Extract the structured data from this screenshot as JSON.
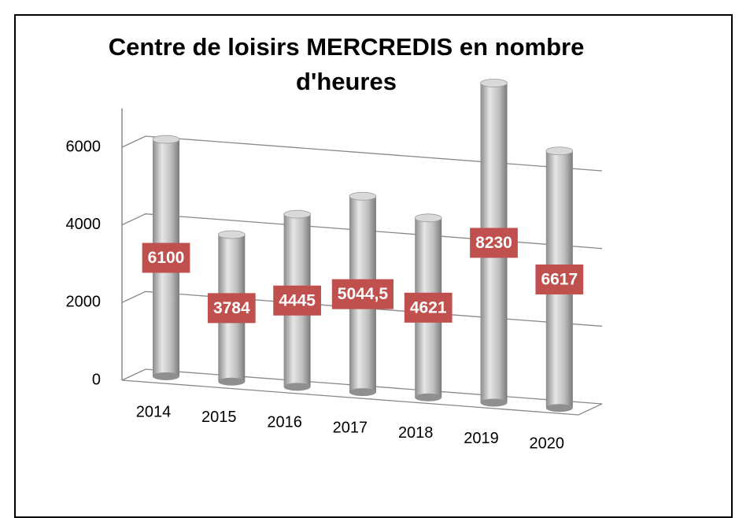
{
  "chart_data": {
    "type": "bar3d",
    "title": "Centre de loisirs MERCREDIS en nombre d'heures",
    "categories": [
      "2014",
      "2015",
      "2016",
      "2017",
      "2018",
      "2019",
      "2020"
    ],
    "values": [
      6100,
      3784,
      4445,
      5044.5,
      4621,
      8230,
      6617
    ],
    "value_labels": [
      "6100",
      "3784",
      "4445",
      "5044,5",
      "4621",
      "8230",
      "6617"
    ],
    "color": "#b0b0b0",
    "label_color": "#c0504d",
    "ylim": [
      0,
      7000
    ],
    "yticks": [
      0,
      2000,
      4000,
      6000
    ],
    "grid": true
  }
}
